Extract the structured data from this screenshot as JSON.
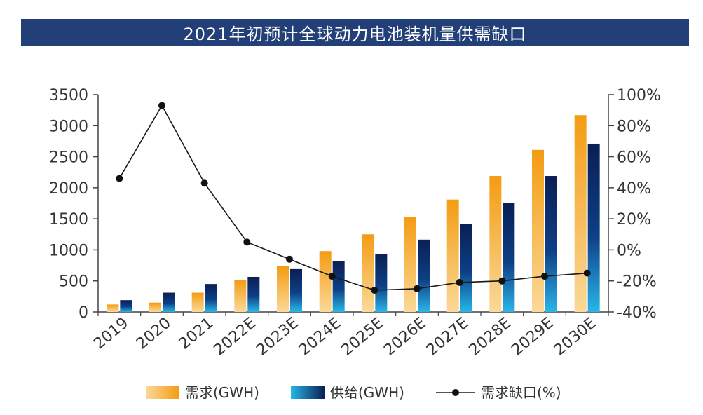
{
  "title": "2021年初预计全球动力电池装机量供需缺口",
  "chart_data": {
    "type": "bar",
    "title": "2021年初预计全球动力电池装机量供需缺口",
    "categories": [
      "2019",
      "2020",
      "2021",
      "2022E",
      "2023E",
      "2024E",
      "2025E",
      "2026E",
      "2027E",
      "2028E",
      "2029E",
      "2030E"
    ],
    "series": [
      {
        "name": "需求(GWH)",
        "kind": "bar",
        "axis": "left",
        "color": "#f5a623",
        "values": [
          120,
          150,
          310,
          520,
          735,
          980,
          1250,
          1535,
          1810,
          2190,
          2610,
          3170
        ]
      },
      {
        "name": "供给(GWH)",
        "kind": "bar",
        "axis": "left",
        "color": "#0d2a66",
        "values": [
          190,
          310,
          450,
          565,
          690,
          815,
          930,
          1165,
          1415,
          1755,
          2190,
          2710
        ]
      },
      {
        "name": "需求缺口(%)",
        "kind": "line",
        "axis": "right",
        "color": "#1a1a1a",
        "values": [
          46,
          93,
          43,
          5,
          -6,
          -17,
          -26,
          -25,
          -21,
          -20,
          -17,
          -15
        ]
      }
    ],
    "y_left": {
      "min": 0,
      "max": 3500,
      "ticks": [
        "3500",
        "3000",
        "2500",
        "2000",
        "1500",
        "1000",
        "500",
        "0"
      ]
    },
    "y_right": {
      "min": -40,
      "max": 100,
      "ticks": [
        "100%",
        "80%",
        "60%",
        "40%",
        "20%",
        "0%",
        "-20%",
        "-40%"
      ]
    },
    "grid": false,
    "legend_position": "bottom"
  }
}
